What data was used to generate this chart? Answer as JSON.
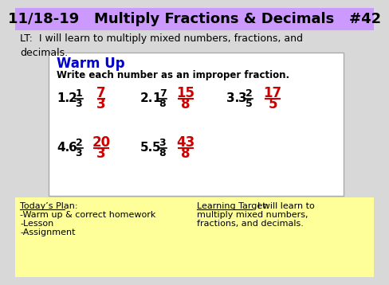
{
  "title": "11/18-19   Multiply Fractions & Decimals   #42",
  "title_bg": "#cc99ff",
  "lt_text": "LT:  I will learn to multiply mixed numbers, fractions, and\ndecimals.",
  "main_bg": "#d8d8d8",
  "warmup_bg": "#ffffff",
  "bottom_bg": "#ffff99",
  "warmup_title": "Warm Up",
  "warmup_subtitle": "Write each number as an improper fraction.",
  "warmup_title_color": "#0000cc",
  "warmup_subtitle_color": "#000000",
  "answer_color": "#cc0000",
  "problem_color": "#000000",
  "today_plan_label": "Today’s Plan:",
  "today_plan_items": [
    "-Warm up & correct homework",
    "-Lesson",
    "-Assignment"
  ],
  "learning_target_label": "Learning Target:",
  "learning_target_rest": "  I will learn to\nmultiply mixed numbers,\nfractions, and decimals."
}
